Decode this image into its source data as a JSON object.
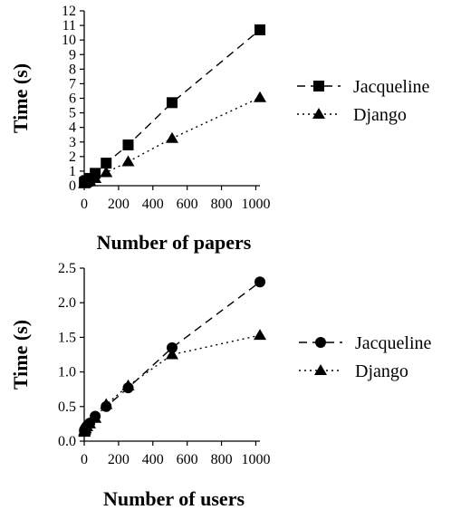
{
  "chart_data": [
    {
      "type": "line",
      "xlabel": "Number of papers",
      "ylabel": "Time (s)",
      "xlim": [
        0,
        1024
      ],
      "ylim": [
        0,
        12
      ],
      "xticks": [
        0,
        200,
        400,
        600,
        800,
        1000
      ],
      "yticks": [
        0,
        1,
        2,
        3,
        4,
        5,
        6,
        7,
        8,
        9,
        10,
        11,
        12
      ],
      "legend_position": "right",
      "series": [
        {
          "name": "Jacqueline",
          "marker": "square",
          "line_style": "dashed",
          "x": [
            1,
            2,
            4,
            8,
            16,
            32,
            64,
            128,
            256,
            512,
            1024
          ],
          "y": [
            0.2,
            0.22,
            0.25,
            0.3,
            0.35,
            0.5,
            0.85,
            1.55,
            2.8,
            5.7,
            10.7
          ]
        },
        {
          "name": "Django",
          "marker": "triangle",
          "line_style": "dotted",
          "x": [
            1,
            2,
            4,
            8,
            16,
            32,
            64,
            128,
            256,
            512,
            1024
          ],
          "y": [
            0.15,
            0.17,
            0.18,
            0.2,
            0.25,
            0.33,
            0.5,
            0.9,
            1.65,
            3.25,
            6.05
          ]
        }
      ]
    },
    {
      "type": "line",
      "xlabel": "Number of users",
      "ylabel": "Time (s)",
      "xlim": [
        0,
        1024
      ],
      "ylim": [
        0,
        2.5
      ],
      "xticks": [
        0,
        200,
        400,
        600,
        800,
        1000
      ],
      "yticks": [
        "0.0",
        "0.5",
        "1.0",
        "1.5",
        "2.0",
        "2.5"
      ],
      "legend_position": "right",
      "series": [
        {
          "name": "Jacqueline",
          "marker": "circle",
          "line_style": "dashed",
          "x": [
            1,
            2,
            4,
            8,
            16,
            32,
            64,
            128,
            256,
            512,
            1024
          ],
          "y": [
            0.15,
            0.16,
            0.17,
            0.19,
            0.22,
            0.26,
            0.36,
            0.5,
            0.77,
            1.35,
            2.3
          ]
        },
        {
          "name": "Django",
          "marker": "triangle",
          "line_style": "dotted",
          "x": [
            1,
            2,
            4,
            8,
            16,
            32,
            64,
            128,
            256,
            512,
            1024
          ],
          "y": [
            0.13,
            0.15,
            0.16,
            0.18,
            0.21,
            0.25,
            0.33,
            0.53,
            0.8,
            1.25,
            1.53
          ]
        }
      ]
    }
  ],
  "colors": {
    "ink": "#000000",
    "background": "#ffffff"
  }
}
